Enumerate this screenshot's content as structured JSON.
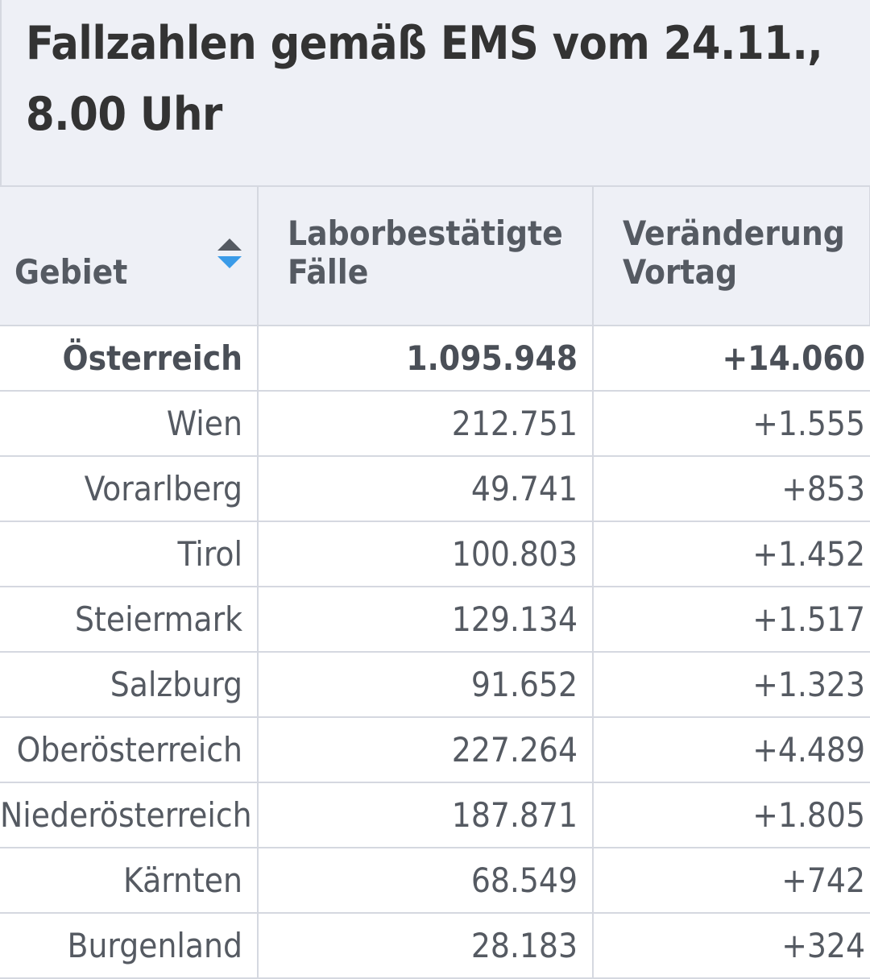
{
  "title": "Fallzahlen gemäß EMS vom 24.11., 8.00 Uhr",
  "columns": [
    {
      "label": "Gebiet",
      "sort": "descending-active"
    },
    {
      "label": "Laborbestätigte Fälle",
      "sort": "none"
    },
    {
      "label": "Veränderung Vortag",
      "sort": "none"
    }
  ],
  "rows": [
    {
      "gebiet": "Österreich",
      "faelle": "1.095.948",
      "vortag": "+14.060"
    },
    {
      "gebiet": "Wien",
      "faelle": "212.751",
      "vortag": "+1.555"
    },
    {
      "gebiet": "Vorarlberg",
      "faelle": "49.741",
      "vortag": "+853"
    },
    {
      "gebiet": "Tirol",
      "faelle": "100.803",
      "vortag": "+1.452"
    },
    {
      "gebiet": "Steiermark",
      "faelle": "129.134",
      "vortag": "+1.517"
    },
    {
      "gebiet": "Salzburg",
      "faelle": "91.652",
      "vortag": "+1.323"
    },
    {
      "gebiet": "Oberösterreich",
      "faelle": "227.264",
      "vortag": "+4.489"
    },
    {
      "gebiet": "Niederösterreich",
      "faelle": "187.871",
      "vortag": "+1.805"
    },
    {
      "gebiet": "Kärnten",
      "faelle": "68.549",
      "vortag": "+742"
    },
    {
      "gebiet": "Burgenland",
      "faelle": "28.183",
      "vortag": "+324"
    }
  ],
  "colors": {
    "header_bg": "#eef0f6",
    "text": "#555a62",
    "sort_active": "#3a9be8",
    "border": "#d5d8e0"
  },
  "icons": [
    "sort-icon"
  ]
}
